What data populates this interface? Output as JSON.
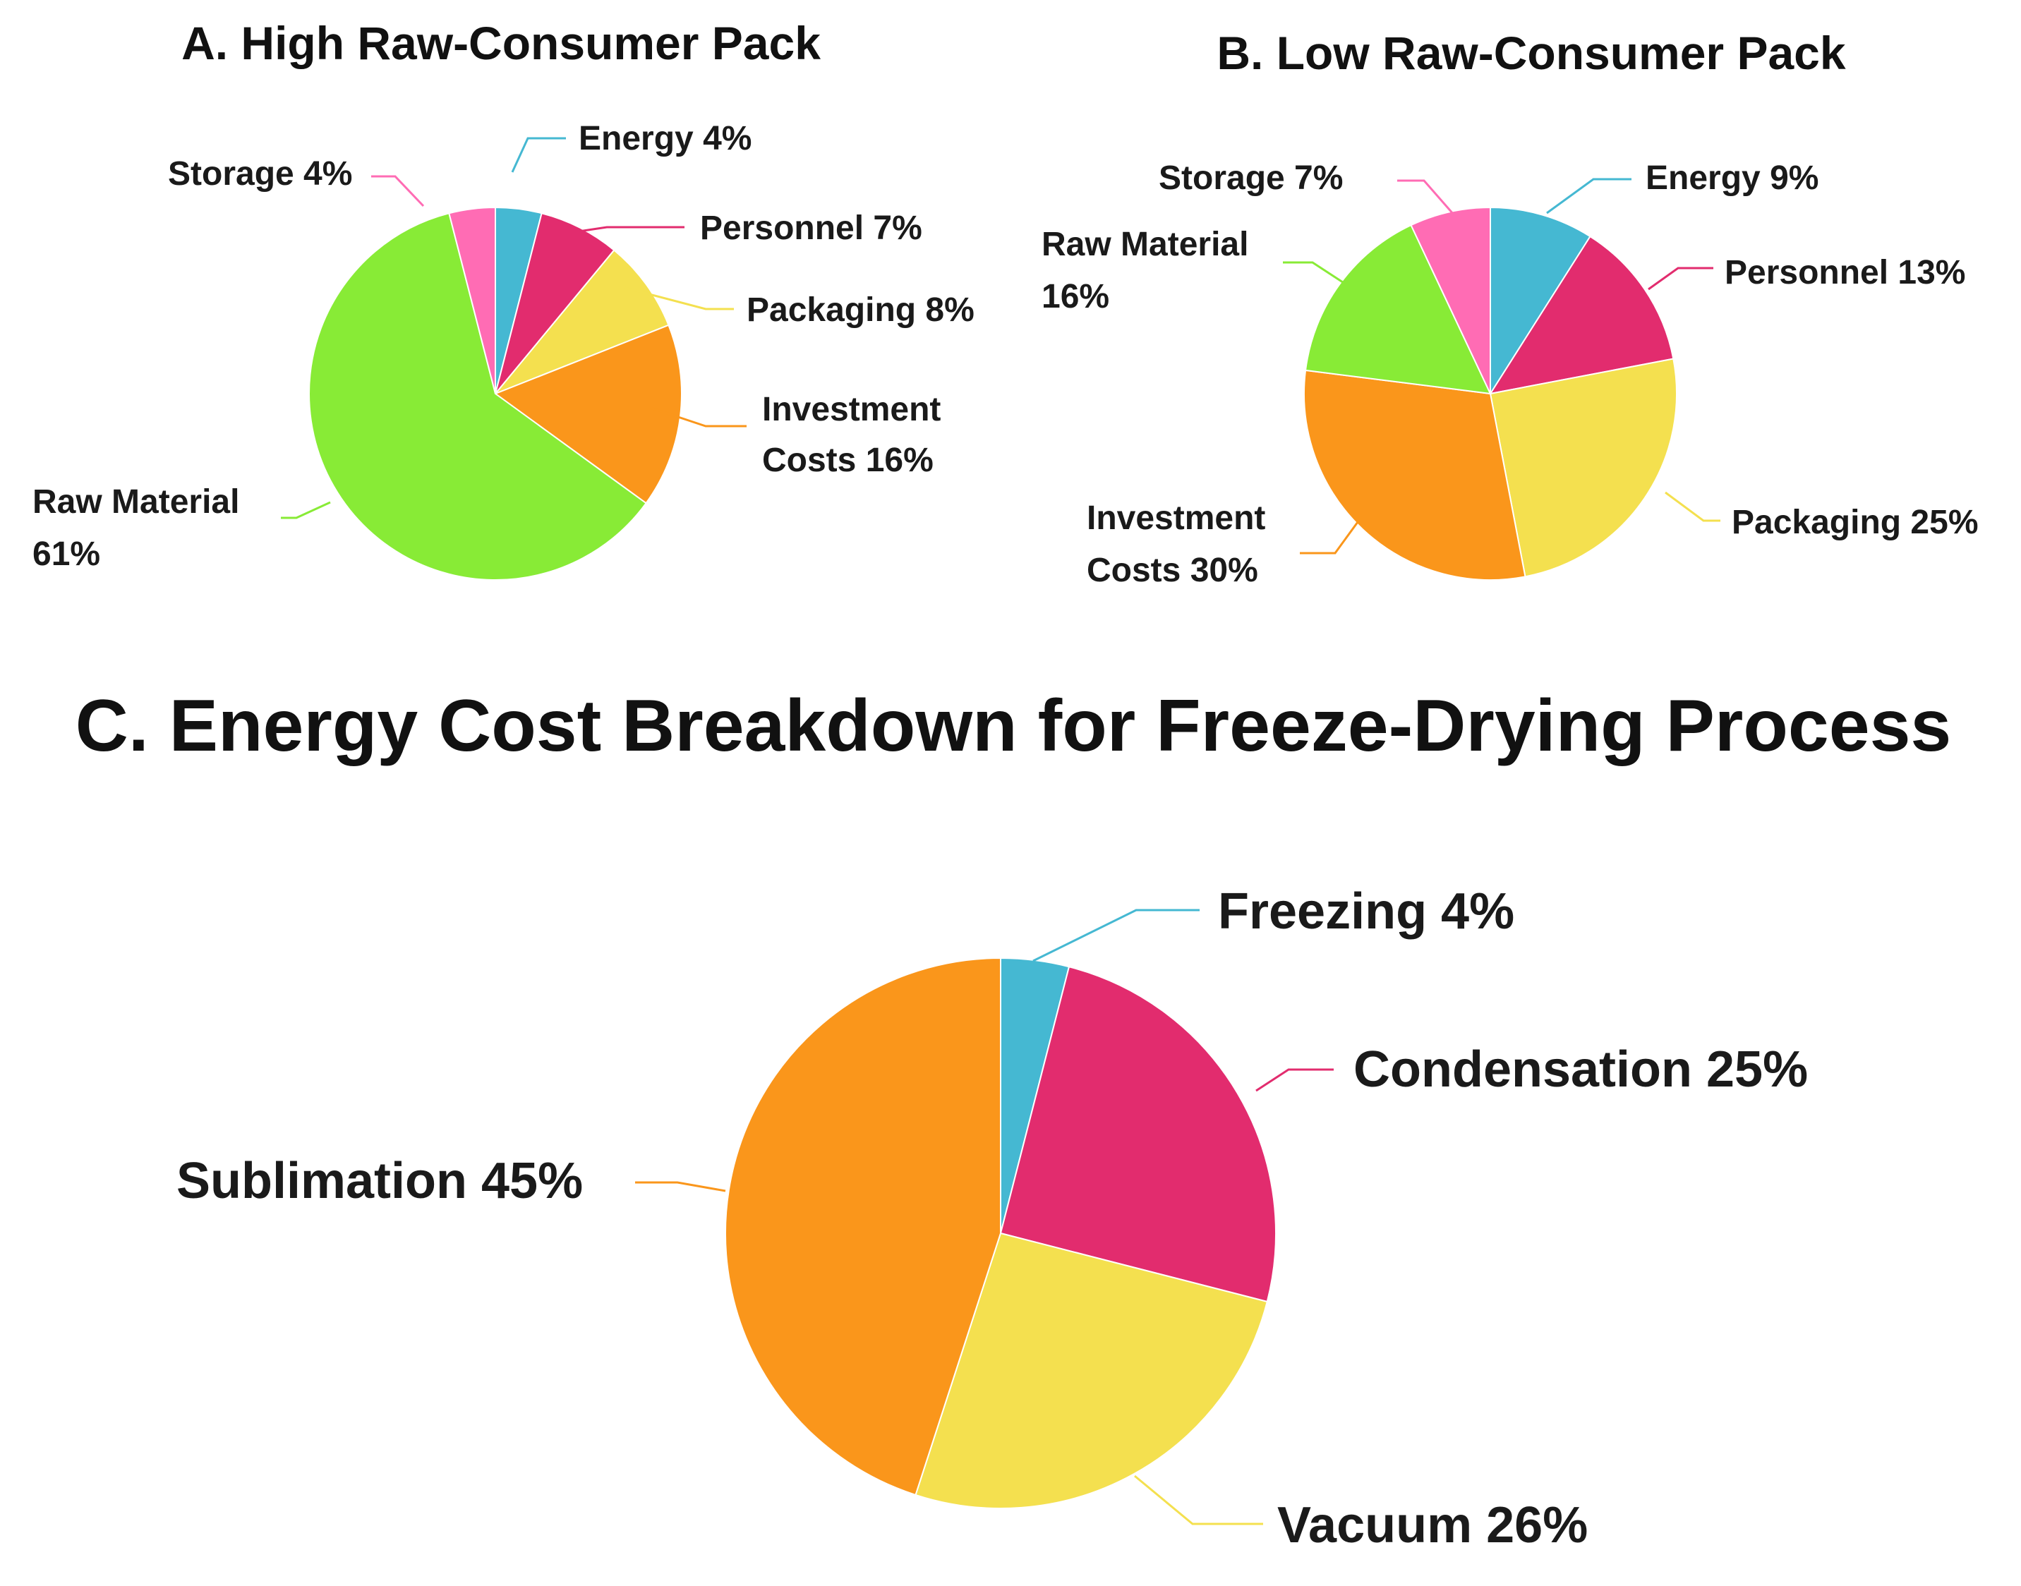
{
  "chart_data": [
    {
      "type": "pie",
      "title": "A. High Raw-Consumer Pack",
      "slices": [
        {
          "label": "Energy 4%",
          "name": "Energy",
          "value": 4,
          "color": "#45B8D2"
        },
        {
          "label": "Personnel 7%",
          "name": "Personnel",
          "value": 7,
          "color": "#E22C6E"
        },
        {
          "label": "Packaging 8%",
          "name": "Packaging",
          "value": 8,
          "color": "#F4E04F"
        },
        {
          "label": "Investment Costs 16%",
          "name": "Investment Costs",
          "value": 16,
          "color": "#FA961B"
        },
        {
          "label": "Raw Material 61%",
          "name": "Raw Material",
          "value": 61,
          "color": "#88EB36"
        },
        {
          "label": "Storage 4%",
          "name": "Storage",
          "value": 4,
          "color": "#FF6CB4"
        }
      ]
    },
    {
      "type": "pie",
      "title": "B. Low Raw-Consumer Pack",
      "slices": [
        {
          "label": "Energy 9%",
          "name": "Energy",
          "value": 9,
          "color": "#45B8D2"
        },
        {
          "label": "Personnel 13%",
          "name": "Personnel",
          "value": 13,
          "color": "#E22C6E"
        },
        {
          "label": "Packaging 25%",
          "name": "Packaging",
          "value": 25,
          "color": "#F4E04F"
        },
        {
          "label": "Investment Costs 30%",
          "name": "Investment Costs",
          "value": 30,
          "color": "#FA961B"
        },
        {
          "label": "Raw Material 16%",
          "name": "Raw Material",
          "value": 16,
          "color": "#88EB36"
        },
        {
          "label": "Storage 7%",
          "name": "Storage",
          "value": 7,
          "color": "#FF6CB4"
        }
      ]
    },
    {
      "type": "pie",
      "title": "C. Energy Cost Breakdown for Freeze-Drying Process",
      "slices": [
        {
          "label": "Freezing 4%",
          "name": "Freezing",
          "value": 4,
          "color": "#45B8D2"
        },
        {
          "label": "Condensation 25%",
          "name": "Condensation",
          "value": 25,
          "color": "#E22C6E"
        },
        {
          "label": "Vacuum 26%",
          "name": "Vacuum",
          "value": 26,
          "color": "#F4E04F"
        },
        {
          "label": "Sublimation 45%",
          "name": "Sublimation",
          "value": 45,
          "color": "#FA961B"
        }
      ]
    }
  ]
}
